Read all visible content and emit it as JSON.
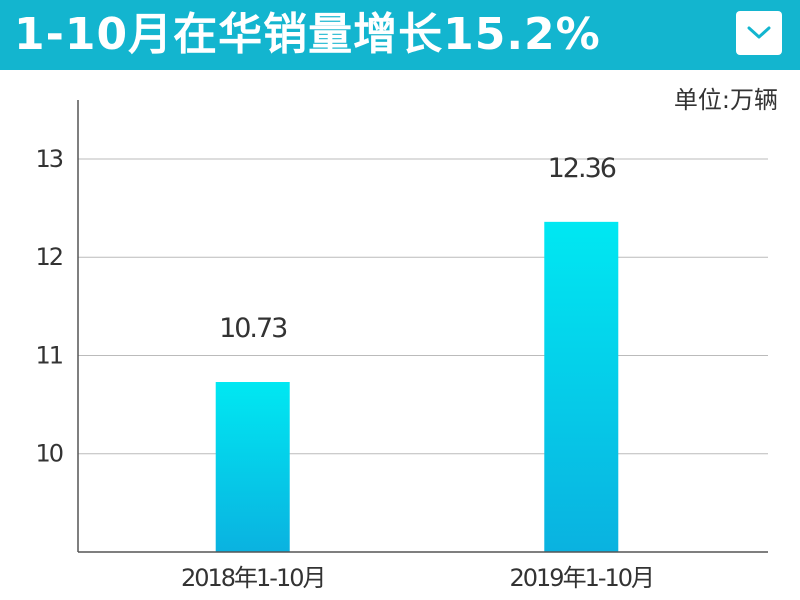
{
  "header": {
    "title": "1-10月在华销量增长15.2%",
    "dropdown_icon": "chevron-down-icon"
  },
  "colors": {
    "header_bg": "#13b5cf",
    "bar_top": "#00e8f2",
    "bar_bottom": "#0ab2e0",
    "grid": "#bbbbbb",
    "axis": "#555555"
  },
  "chart_data": {
    "type": "bar",
    "unit_label": "单位:万辆",
    "categories": [
      "2018年1-10月",
      "2019年1-10月"
    ],
    "values": [
      10.73,
      12.36
    ],
    "value_labels": [
      "10.73",
      "12.36"
    ],
    "yticks": [
      10,
      11,
      12,
      13
    ],
    "ylim": [
      9,
      13.6
    ],
    "grid": true,
    "legend": "none"
  }
}
